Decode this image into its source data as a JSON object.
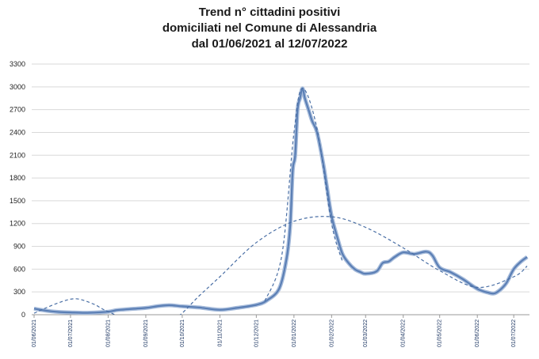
{
  "chart_data": {
    "type": "line",
    "title": [
      "Trend n° cittadini positivi",
      "domiciliati nel Comune di Alessandria",
      "dal 01/06/2021 al 12/07/2022"
    ],
    "xlabel": "",
    "ylabel": "",
    "ylim": [
      0,
      3300
    ],
    "yticks": [
      0,
      300,
      600,
      900,
      1200,
      1500,
      1800,
      2100,
      2400,
      2700,
      3000,
      3300
    ],
    "x_range": [
      "01/06/2021",
      "12/07/2022"
    ],
    "xticks": [
      "01/06/2021",
      "01/07/2021",
      "01/08/2021",
      "01/09/2021",
      "01/10/2021",
      "01/11/2021",
      "01/12/2021",
      "01/01/2022",
      "01/02/2022",
      "01/03/2022",
      "01/04/2022",
      "01/05/2022",
      "01/06/2022",
      "01/07/2022"
    ],
    "grid": true,
    "legend": "none",
    "series": [
      {
        "style": "solid",
        "color": "#5b7fb5",
        "points": [
          [
            "01/06/2021",
            80
          ],
          [
            "08/06/2021",
            60
          ],
          [
            "15/06/2021",
            45
          ],
          [
            "22/06/2021",
            35
          ],
          [
            "01/07/2021",
            30
          ],
          [
            "15/07/2021",
            25
          ],
          [
            "01/08/2021",
            40
          ],
          [
            "08/08/2021",
            60
          ],
          [
            "15/08/2021",
            70
          ],
          [
            "01/09/2021",
            90
          ],
          [
            "10/09/2021",
            110
          ],
          [
            "20/09/2021",
            125
          ],
          [
            "01/10/2021",
            110
          ],
          [
            "15/10/2021",
            95
          ],
          [
            "01/11/2021",
            65
          ],
          [
            "15/11/2021",
            90
          ],
          [
            "01/12/2021",
            130
          ],
          [
            "10/12/2021",
            190
          ],
          [
            "20/12/2021",
            350
          ],
          [
            "26/12/2021",
            750
          ],
          [
            "29/12/2021",
            1200
          ],
          [
            "31/12/2021",
            1900
          ],
          [
            "02/01/2022",
            2100
          ],
          [
            "04/01/2022",
            2700
          ],
          [
            "06/01/2022",
            2850
          ],
          [
            "08/01/2022",
            2980
          ],
          [
            "10/01/2022",
            2850
          ],
          [
            "13/01/2022",
            2700
          ],
          [
            "16/01/2022",
            2550
          ],
          [
            "20/01/2022",
            2400
          ],
          [
            "25/01/2022",
            2000
          ],
          [
            "28/01/2022",
            1700
          ],
          [
            "01/02/2022",
            1300
          ],
          [
            "06/02/2022",
            1000
          ],
          [
            "10/02/2022",
            800
          ],
          [
            "15/02/2022",
            680
          ],
          [
            "20/02/2022",
            600
          ],
          [
            "25/02/2022",
            560
          ],
          [
            "01/03/2022",
            540
          ],
          [
            "10/03/2022",
            570
          ],
          [
            "15/03/2022",
            680
          ],
          [
            "20/03/2022",
            700
          ],
          [
            "25/03/2022",
            760
          ],
          [
            "01/04/2022",
            820
          ],
          [
            "10/04/2022",
            800
          ],
          [
            "20/04/2022",
            830
          ],
          [
            "25/04/2022",
            780
          ],
          [
            "01/05/2022",
            620
          ],
          [
            "10/05/2022",
            560
          ],
          [
            "20/05/2022",
            470
          ],
          [
            "01/06/2022",
            340
          ],
          [
            "10/06/2022",
            290
          ],
          [
            "15/06/2022",
            280
          ],
          [
            "20/06/2022",
            330
          ],
          [
            "25/06/2022",
            420
          ],
          [
            "01/07/2022",
            600
          ],
          [
            "07/07/2022",
            700
          ],
          [
            "12/07/2022",
            760
          ]
        ]
      },
      {
        "style": "dashed",
        "color": "#4a6fa5",
        "points": [
          [
            "01/06/2021",
            20
          ],
          [
            "20/06/2021",
            150
          ],
          [
            "05/07/2021",
            210
          ],
          [
            "20/07/2021",
            140
          ],
          [
            "01/08/2021",
            40
          ],
          [
            "01/09/2021",
            -150
          ],
          [
            "25/09/2021",
            -50
          ],
          [
            "15/10/2021",
            250
          ],
          [
            "01/11/2021",
            500
          ],
          [
            "01/12/2021",
            950
          ],
          [
            "01/01/2022",
            1230
          ],
          [
            "01/02/2022",
            1290
          ],
          [
            "01/03/2022",
            1150
          ],
          [
            "01/04/2022",
            880
          ],
          [
            "01/05/2022",
            580
          ],
          [
            "01/06/2022",
            360
          ],
          [
            "01/07/2022",
            500
          ],
          [
            "12/07/2022",
            640
          ]
        ]
      },
      {
        "style": "dashed",
        "color": "#4a6fa5",
        "points": [
          [
            "08/12/2021",
            180
          ],
          [
            "22/12/2021",
            780
          ],
          [
            "01/01/2022",
            2400
          ],
          [
            "08/01/2022",
            2980
          ],
          [
            "20/01/2022",
            2450
          ],
          [
            "01/02/2022",
            1200
          ],
          [
            "10/02/2022",
            700
          ]
        ]
      }
    ]
  }
}
